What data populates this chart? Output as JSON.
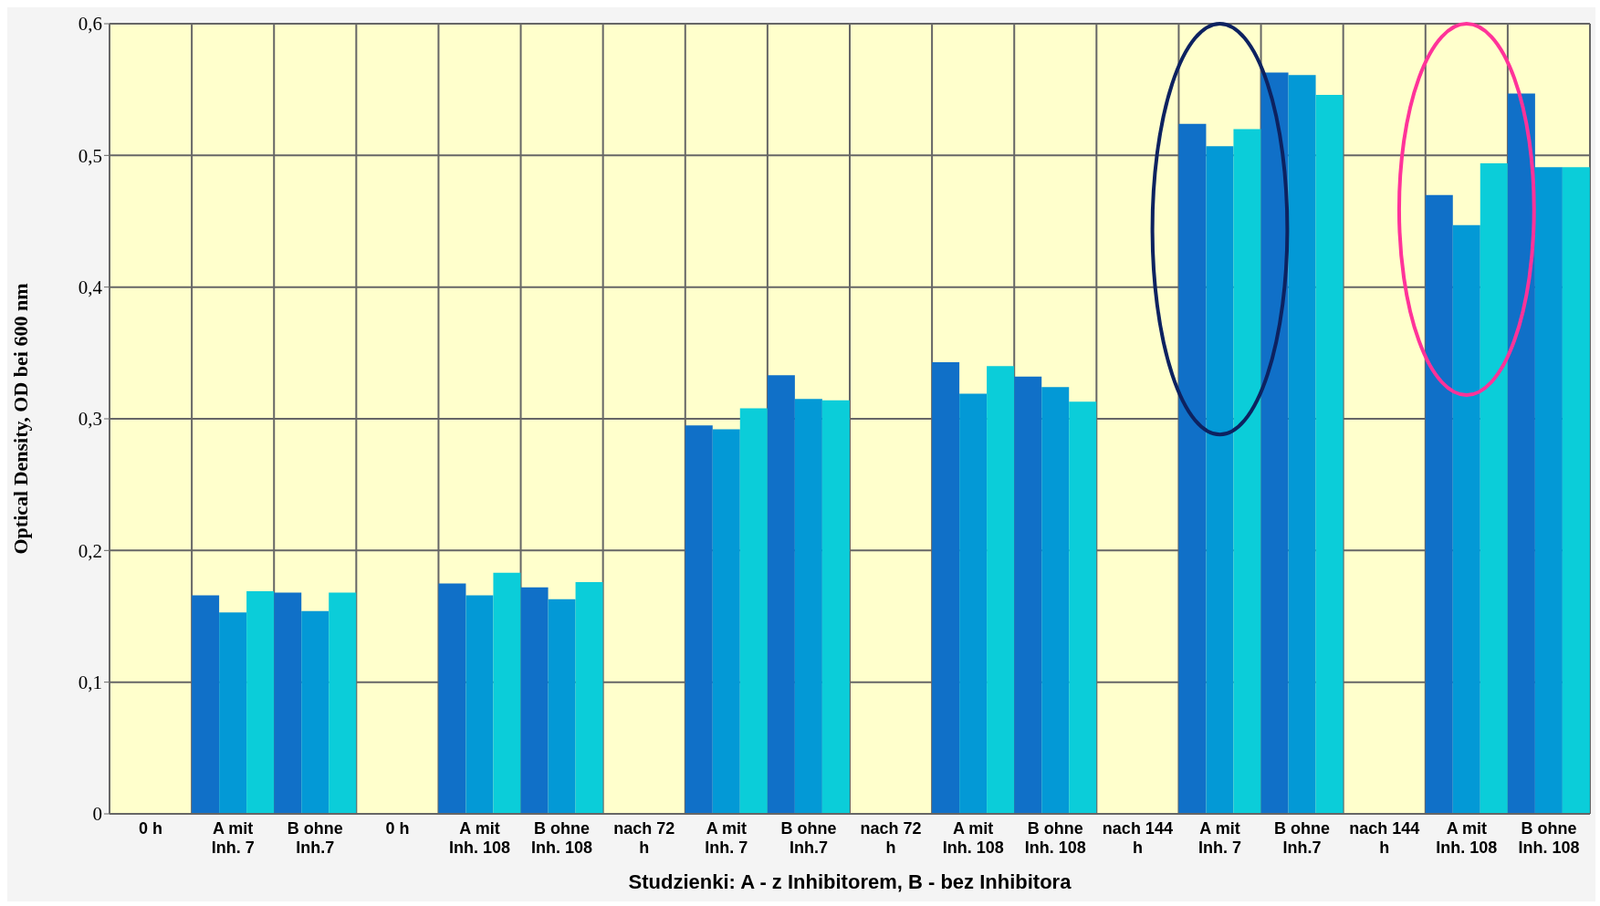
{
  "chart_data": {
    "type": "bar",
    "xlabel": "Studzienki: A - z Inhibitorem, B - bez Inhibitora",
    "ylabel": "Optical Density, OD bei 600 nm",
    "categories": [
      "0 h",
      "A mit Inh. 7",
      "B ohne Inh.7",
      "0 h",
      "A mit Inh. 108",
      "B ohne Inh. 108",
      "nach 72 h",
      "A mit Inh. 7",
      "B ohne Inh.7",
      "nach 72 h",
      "A mit Inh. 108",
      "B ohne Inh. 108",
      "nach 144 h",
      "A mit Inh. 7",
      "B ohne Inh.7",
      "nach 144 h",
      "A mit Inh. 108",
      "B ohne Inh. 108"
    ],
    "series": [
      {
        "color": "#1070c8",
        "values": [
          null,
          0.166,
          0.168,
          null,
          0.175,
          0.172,
          null,
          0.295,
          0.333,
          null,
          0.343,
          0.332,
          null,
          0.524,
          0.563,
          null,
          0.47,
          0.547
        ]
      },
      {
        "color": "#0399d6",
        "values": [
          null,
          0.153,
          0.154,
          null,
          0.166,
          0.163,
          null,
          0.292,
          0.315,
          null,
          0.319,
          0.324,
          null,
          0.507,
          0.561,
          null,
          0.447,
          0.491
        ]
      },
      {
        "color": "#0bcdd9",
        "values": [
          null,
          0.169,
          0.168,
          null,
          0.183,
          0.176,
          null,
          0.308,
          0.314,
          null,
          0.34,
          0.313,
          null,
          0.52,
          0.546,
          null,
          0.494,
          0.491
        ]
      }
    ],
    "ylim": [
      0,
      0.6
    ],
    "yticks": [
      0,
      {
        "value": 0.1,
        "label": "0,1"
      },
      {
        "value": 0.2,
        "label": "0,2"
      },
      {
        "value": 0.3,
        "label": "0,3"
      },
      {
        "value": 0.4,
        "label": "0,4"
      },
      {
        "value": 0.5,
        "label": "0,5"
      },
      {
        "value": 0.6,
        "label": "0,6"
      }
    ],
    "grid": true
  }
}
